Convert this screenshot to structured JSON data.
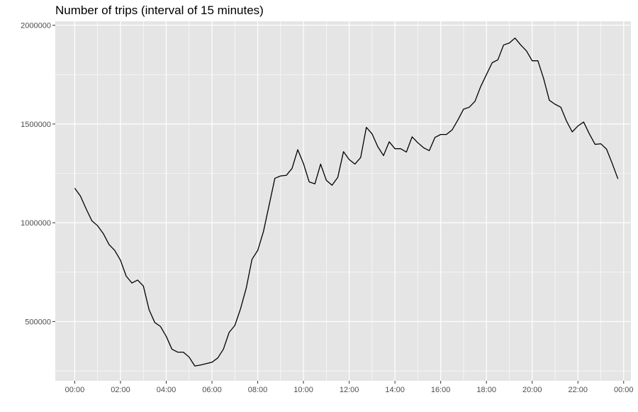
{
  "chart_data": {
    "type": "line",
    "title": "Number of trips (interval of 15 minutes)",
    "xlabel": "",
    "ylabel": "",
    "x_ticks": [
      "00:00",
      "02:00",
      "04:00",
      "06:00",
      "08:00",
      "10:00",
      "12:00",
      "14:00",
      "16:00",
      "18:00",
      "20:00",
      "22:00",
      "00:00"
    ],
    "y_ticks": [
      500000,
      1000000,
      1500000,
      2000000
    ],
    "y_tick_labels": [
      "500000",
      "1000000",
      "1500000",
      "2000000"
    ],
    "xlim": [
      "00:00",
      "24:00"
    ],
    "ylim": [
      200000,
      2020000
    ],
    "grid": true,
    "background_color": "#e5e5e5",
    "grid_color": "#ffffff",
    "line_color": "#000000",
    "series": [
      {
        "x": [
          "00:00",
          "00:15",
          "00:30",
          "00:45",
          "01:00",
          "01:15",
          "01:30",
          "01:45",
          "02:00",
          "02:15",
          "02:30",
          "02:45",
          "03:00",
          "03:15",
          "03:30",
          "03:45",
          "04:00",
          "04:15",
          "04:30",
          "04:45",
          "05:00",
          "05:15",
          "05:30",
          "05:45",
          "06:00",
          "06:15",
          "06:30",
          "06:45",
          "07:00",
          "07:15",
          "07:30",
          "07:45",
          "08:00",
          "08:15",
          "08:30",
          "08:45",
          "09:00",
          "09:15",
          "09:30",
          "09:45",
          "10:00",
          "10:15",
          "10:30",
          "10:45",
          "11:00",
          "11:15",
          "11:30",
          "11:45",
          "12:00",
          "12:15",
          "12:30",
          "12:45",
          "13:00",
          "13:15",
          "13:30",
          "13:45",
          "14:00",
          "14:15",
          "14:30",
          "14:45",
          "15:00",
          "15:15",
          "15:30",
          "15:45",
          "16:00",
          "16:15",
          "16:30",
          "16:45",
          "17:00",
          "17:15",
          "17:30",
          "17:45",
          "18:00",
          "18:15",
          "18:30",
          "18:45",
          "19:00",
          "19:15",
          "19:30",
          "19:45",
          "20:00",
          "20:15",
          "20:30",
          "20:45",
          "21:00",
          "21:15",
          "21:30",
          "21:45",
          "22:00",
          "22:15",
          "22:30",
          "22:45",
          "23:00",
          "23:15",
          "23:30",
          "23:45"
        ],
        "values": [
          1175000,
          1135000,
          1070000,
          1010000,
          985000,
          945000,
          890000,
          860000,
          810000,
          730000,
          695000,
          710000,
          680000,
          560000,
          495000,
          475000,
          425000,
          360000,
          345000,
          345000,
          320000,
          275000,
          280000,
          287000,
          294000,
          315000,
          360000,
          445000,
          480000,
          565000,
          670000,
          815000,
          860000,
          955000,
          1090000,
          1225000,
          1237000,
          1240000,
          1275000,
          1370000,
          1300000,
          1207000,
          1197000,
          1297000,
          1215000,
          1190000,
          1230000,
          1360000,
          1320000,
          1297000,
          1330000,
          1483000,
          1450000,
          1385000,
          1340000,
          1410000,
          1375000,
          1375000,
          1358000,
          1435000,
          1405000,
          1380000,
          1365000,
          1432000,
          1447000,
          1447000,
          1470000,
          1520000,
          1575000,
          1585000,
          1615000,
          1690000,
          1750000,
          1810000,
          1825000,
          1900000,
          1910000,
          1935000,
          1900000,
          1870000,
          1820000,
          1820000,
          1730000,
          1620000,
          1600000,
          1585000,
          1515000,
          1460000,
          1490000,
          1510000,
          1450000,
          1397000,
          1400000,
          1373000,
          1300000,
          1222000
        ]
      }
    ]
  }
}
